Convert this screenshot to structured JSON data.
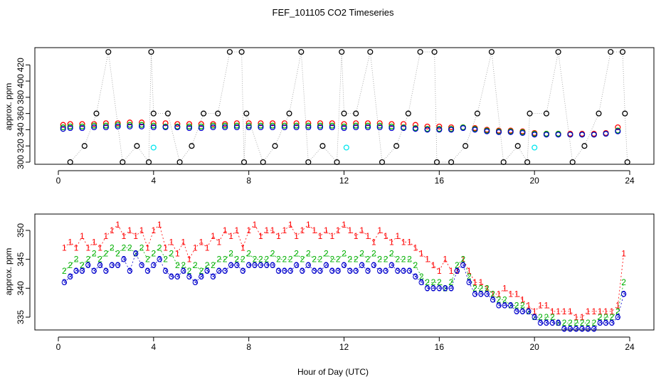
{
  "figure": {
    "title": "FEF_101105  CO2 Timeseries",
    "xlabel": "Hour of Day (UTC)"
  },
  "chart_data": [
    {
      "type": "scatter",
      "name": "top-panel",
      "ylabel": "approx. ppm",
      "xlim": [
        0,
        24
      ],
      "ylim": [
        300,
        436
      ],
      "x_ticks": [
        0,
        4,
        8,
        12,
        16,
        20,
        24
      ],
      "x_tick_labels": [
        "0",
        "4",
        "8",
        "12",
        "16",
        "20",
        "24"
      ],
      "y_ticks": [
        300,
        320,
        340,
        360,
        380,
        400,
        420
      ],
      "y_tick_labels": [
        "300",
        "320",
        "340",
        "360",
        "380",
        "400",
        "420"
      ],
      "series": [
        {
          "name": "red",
          "color": "#ff0000",
          "x": [
            0.2,
            0.5,
            1.0,
            1.5,
            2.0,
            2.5,
            3.0,
            3.5,
            4.0,
            4.5,
            5.0,
            5.5,
            6.0,
            6.5,
            7.0,
            7.5,
            8.0,
            8.5,
            9.0,
            9.5,
            10.0,
            10.5,
            11.0,
            11.5,
            12.0,
            12.5,
            13.0,
            13.5,
            14.0,
            14.5,
            15.0,
            15.5,
            16.0,
            16.5,
            17.0,
            17.5,
            18.0,
            18.5,
            19.0,
            19.5,
            20.0,
            20.5,
            21.0,
            21.5,
            22.0,
            22.5,
            23.0,
            23.5
          ],
          "y": [
            346,
            347,
            347,
            347,
            348,
            348,
            349,
            349,
            348,
            348,
            347,
            347,
            347,
            347,
            347,
            348,
            348,
            348,
            348,
            348,
            348,
            348,
            348,
            348,
            347,
            348,
            348,
            348,
            347,
            347,
            346,
            344,
            344,
            343,
            343,
            342,
            340,
            339,
            339,
            338,
            336,
            335,
            335,
            335,
            335,
            335,
            336,
            343
          ]
        },
        {
          "name": "green",
          "color": "#00b000",
          "x": [
            0.2,
            0.5,
            1.0,
            1.5,
            2.0,
            2.5,
            3.0,
            3.5,
            4.0,
            4.5,
            5.0,
            5.5,
            6.0,
            6.5,
            7.0,
            7.5,
            8.0,
            8.5,
            9.0,
            9.5,
            10.0,
            10.5,
            11.0,
            11.5,
            12.0,
            12.5,
            13.0,
            13.5,
            14.0,
            14.5,
            15.0,
            15.5,
            16.0,
            16.5,
            17.0,
            17.5,
            18.0,
            18.5,
            19.0,
            19.5,
            20.0,
            20.5,
            21.0,
            21.5,
            22.0,
            22.5,
            23.0,
            23.5
          ],
          "y": [
            343,
            344,
            344,
            345,
            345,
            346,
            346,
            346,
            345,
            344,
            344,
            344,
            344,
            345,
            345,
            345,
            345,
            345,
            345,
            345,
            345,
            345,
            345,
            345,
            344,
            345,
            345,
            345,
            344,
            343,
            342,
            341,
            341,
            341,
            343,
            341,
            339,
            338,
            338,
            337,
            335,
            335,
            335,
            334,
            334,
            334,
            335,
            339
          ]
        },
        {
          "name": "blue",
          "color": "#0000cc",
          "x": [
            0.2,
            0.5,
            1.0,
            1.5,
            2.0,
            2.5,
            3.0,
            3.5,
            4.0,
            4.5,
            5.0,
            5.5,
            6.0,
            6.5,
            7.0,
            7.5,
            8.0,
            8.5,
            9.0,
            9.5,
            10.0,
            10.5,
            11.0,
            11.5,
            12.0,
            12.5,
            13.0,
            13.5,
            14.0,
            14.5,
            15.0,
            15.5,
            16.0,
            16.5,
            17.0,
            17.5,
            18.0,
            18.5,
            19.0,
            19.5,
            20.0,
            20.5,
            21.0,
            21.5,
            22.0,
            22.5,
            23.0,
            23.5
          ],
          "y": [
            341,
            342,
            342,
            343,
            343,
            344,
            344,
            344,
            343,
            343,
            343,
            342,
            342,
            343,
            343,
            343,
            343,
            343,
            343,
            343,
            343,
            343,
            343,
            343,
            342,
            343,
            343,
            343,
            342,
            342,
            341,
            340,
            340,
            340,
            342,
            340,
            338,
            337,
            337,
            336,
            334,
            334,
            334,
            334,
            334,
            334,
            335,
            338
          ]
        },
        {
          "name": "black",
          "color": "#000000",
          "x": [
            0.5,
            1.1,
            1.6,
            2.1,
            2.7,
            3.3,
            3.8,
            3.9,
            4.0,
            4.6,
            5.1,
            5.6,
            6.1,
            6.7,
            7.2,
            7.7,
            7.8,
            7.9,
            8.6,
            9.1,
            9.7,
            10.2,
            10.5,
            11.1,
            11.7,
            11.9,
            12.0,
            12.5,
            13.1,
            13.6,
            14.2,
            14.7,
            15.2,
            15.8,
            15.9,
            16.5,
            17.1,
            17.6,
            18.2,
            18.7,
            19.3,
            19.7,
            19.8,
            20.5,
            21.0,
            21.6,
            22.1,
            22.7,
            23.2,
            23.7,
            23.8,
            23.9
          ],
          "y": [
            300,
            320,
            360,
            436,
            300,
            320,
            300,
            436,
            360,
            360,
            300,
            320,
            360,
            360,
            436,
            436,
            300,
            360,
            300,
            320,
            360,
            436,
            300,
            320,
            300,
            436,
            360,
            360,
            436,
            300,
            320,
            360,
            436,
            436,
            300,
            300,
            320,
            360,
            436,
            300,
            320,
            300,
            360,
            360,
            436,
            300,
            320,
            360,
            436,
            436,
            360,
            300
          ]
        },
        {
          "name": "cyan",
          "color": "#00e5ee",
          "x": [
            4.0,
            12.1,
            20.0
          ],
          "y": [
            318,
            318,
            318
          ]
        }
      ]
    },
    {
      "type": "scatter",
      "name": "bottom-panel",
      "ylabel": "approx. ppm",
      "xlim": [
        0,
        24
      ],
      "ylim": [
        333,
        352.5
      ],
      "x_ticks": [
        0,
        4,
        8,
        12,
        16,
        20,
        24
      ],
      "x_tick_labels": [
        "0",
        "4",
        "8",
        "12",
        "16",
        "20",
        "24"
      ],
      "y_ticks": [
        335,
        340,
        345,
        350
      ],
      "y_tick_labels": [
        "335",
        "340",
        "345",
        "350"
      ],
      "series": [
        {
          "name": "1",
          "color": "#ff0000",
          "x": [
            0.25,
            0.5,
            0.75,
            1.0,
            1.25,
            1.5,
            1.75,
            2.0,
            2.25,
            2.5,
            2.75,
            3.0,
            3.25,
            3.5,
            3.75,
            4.0,
            4.25,
            4.5,
            4.75,
            5.0,
            5.25,
            5.5,
            5.75,
            6.0,
            6.25,
            6.5,
            6.75,
            7.0,
            7.25,
            7.5,
            7.75,
            8.0,
            8.25,
            8.5,
            8.75,
            9.0,
            9.25,
            9.5,
            9.75,
            10.0,
            10.25,
            10.5,
            10.75,
            11.0,
            11.25,
            11.5,
            11.75,
            12.0,
            12.25,
            12.5,
            12.75,
            13.0,
            13.25,
            13.5,
            13.75,
            14.0,
            14.25,
            14.5,
            14.75,
            15.0,
            15.25,
            15.5,
            15.75,
            16.0,
            16.25,
            16.5,
            16.75,
            17.0,
            17.25,
            17.5,
            17.75,
            18.0,
            18.25,
            18.5,
            18.75,
            19.0,
            19.25,
            19.5,
            19.75,
            20.0,
            20.25,
            20.5,
            20.75,
            21.0,
            21.25,
            21.5,
            21.75,
            22.0,
            22.25,
            22.5,
            22.75,
            23.0,
            23.25,
            23.5,
            23.75
          ],
          "y": [
            347,
            348,
            347,
            349,
            347,
            348,
            347,
            349,
            350,
            351,
            349,
            350,
            349,
            350,
            347,
            350,
            351,
            347,
            348,
            346,
            348,
            345,
            347,
            348,
            347,
            349,
            348,
            350,
            349,
            350,
            347,
            350,
            351,
            349,
            350,
            350,
            349,
            350,
            351,
            349,
            350,
            351,
            350,
            349,
            350,
            349,
            350,
            351,
            350,
            349,
            350,
            349,
            348,
            350,
            349,
            348,
            349,
            348,
            348,
            347,
            346,
            345,
            344,
            343,
            345,
            343,
            343,
            345,
            343,
            341,
            341,
            340,
            339,
            339,
            340,
            339,
            339,
            338,
            337,
            336,
            337,
            337,
            336,
            336,
            336,
            336,
            335,
            335,
            336,
            336,
            336,
            336,
            336,
            337,
            346
          ]
        },
        {
          "name": "2",
          "color": "#00b000",
          "x": [
            0.25,
            0.5,
            0.75,
            1.0,
            1.25,
            1.5,
            1.75,
            2.0,
            2.25,
            2.5,
            2.75,
            3.0,
            3.25,
            3.5,
            3.75,
            4.0,
            4.25,
            4.5,
            4.75,
            5.0,
            5.25,
            5.5,
            5.75,
            6.0,
            6.25,
            6.5,
            6.75,
            7.0,
            7.25,
            7.5,
            7.75,
            8.0,
            8.25,
            8.5,
            8.75,
            9.0,
            9.25,
            9.5,
            9.75,
            10.0,
            10.25,
            10.5,
            10.75,
            11.0,
            11.25,
            11.5,
            11.75,
            12.0,
            12.25,
            12.5,
            12.75,
            13.0,
            13.25,
            13.5,
            13.75,
            14.0,
            14.25,
            14.5,
            14.75,
            15.0,
            15.25,
            15.5,
            15.75,
            16.0,
            16.25,
            16.5,
            16.75,
            17.0,
            17.25,
            17.5,
            17.75,
            18.0,
            18.25,
            18.5,
            18.75,
            19.0,
            19.25,
            19.5,
            19.75,
            20.0,
            20.25,
            20.5,
            20.75,
            21.0,
            21.25,
            21.5,
            21.75,
            22.0,
            22.25,
            22.5,
            22.75,
            23.0,
            23.25,
            23.5,
            23.75
          ],
          "y": [
            343,
            344,
            345,
            344,
            345,
            346,
            345,
            346,
            347,
            346,
            347,
            347,
            346,
            347,
            345,
            346,
            347,
            345,
            346,
            344,
            344,
            343,
            344,
            343,
            344,
            344,
            345,
            345,
            346,
            345,
            345,
            346,
            345,
            345,
            345,
            346,
            345,
            345,
            345,
            346,
            345,
            346,
            345,
            345,
            346,
            345,
            345,
            346,
            345,
            345,
            346,
            345,
            346,
            345,
            345,
            346,
            345,
            345,
            345,
            344,
            342,
            341,
            341,
            341,
            340,
            341,
            344,
            345,
            342,
            340,
            340,
            340,
            339,
            338,
            338,
            337,
            337,
            337,
            336,
            335,
            335,
            335,
            335,
            334,
            334,
            334,
            334,
            334,
            334,
            334,
            335,
            335,
            335,
            336,
            341
          ]
        },
        {
          "name": "3",
          "color": "#0000cc",
          "x": [
            0.25,
            0.5,
            0.75,
            1.0,
            1.25,
            1.5,
            1.75,
            2.0,
            2.25,
            2.5,
            2.75,
            3.0,
            3.25,
            3.5,
            3.75,
            4.0,
            4.25,
            4.5,
            4.75,
            5.0,
            5.25,
            5.5,
            5.75,
            6.0,
            6.25,
            6.5,
            6.75,
            7.0,
            7.25,
            7.5,
            7.75,
            8.0,
            8.25,
            8.5,
            8.75,
            9.0,
            9.25,
            9.5,
            9.75,
            10.0,
            10.25,
            10.5,
            10.75,
            11.0,
            11.25,
            11.5,
            11.75,
            12.0,
            12.25,
            12.5,
            12.75,
            13.0,
            13.25,
            13.5,
            13.75,
            14.0,
            14.25,
            14.5,
            14.75,
            15.0,
            15.25,
            15.5,
            15.75,
            16.0,
            16.25,
            16.5,
            16.75,
            17.0,
            17.25,
            17.5,
            17.75,
            18.0,
            18.25,
            18.5,
            18.75,
            19.0,
            19.25,
            19.5,
            19.75,
            20.0,
            20.25,
            20.5,
            20.75,
            21.0,
            21.25,
            21.5,
            21.75,
            22.0,
            22.25,
            22.5,
            22.75,
            23.0,
            23.25,
            23.5,
            23.75
          ],
          "y": [
            341,
            342,
            343,
            343,
            344,
            343,
            344,
            343,
            344,
            344,
            345,
            343,
            346,
            344,
            343,
            344,
            345,
            343,
            342,
            342,
            343,
            342,
            341,
            342,
            343,
            342,
            343,
            343,
            344,
            344,
            343,
            344,
            344,
            344,
            344,
            344,
            343,
            343,
            343,
            344,
            343,
            344,
            343,
            343,
            344,
            343,
            343,
            344,
            343,
            343,
            344,
            343,
            344,
            343,
            343,
            344,
            343,
            343,
            343,
            342,
            341,
            340,
            340,
            340,
            340,
            340,
            343,
            344,
            341,
            339,
            339,
            339,
            338,
            337,
            337,
            337,
            336,
            336,
            336,
            335,
            334,
            334,
            334,
            334,
            333,
            333,
            333,
            333,
            333,
            333,
            334,
            334,
            334,
            335,
            339
          ]
        }
      ]
    }
  ]
}
